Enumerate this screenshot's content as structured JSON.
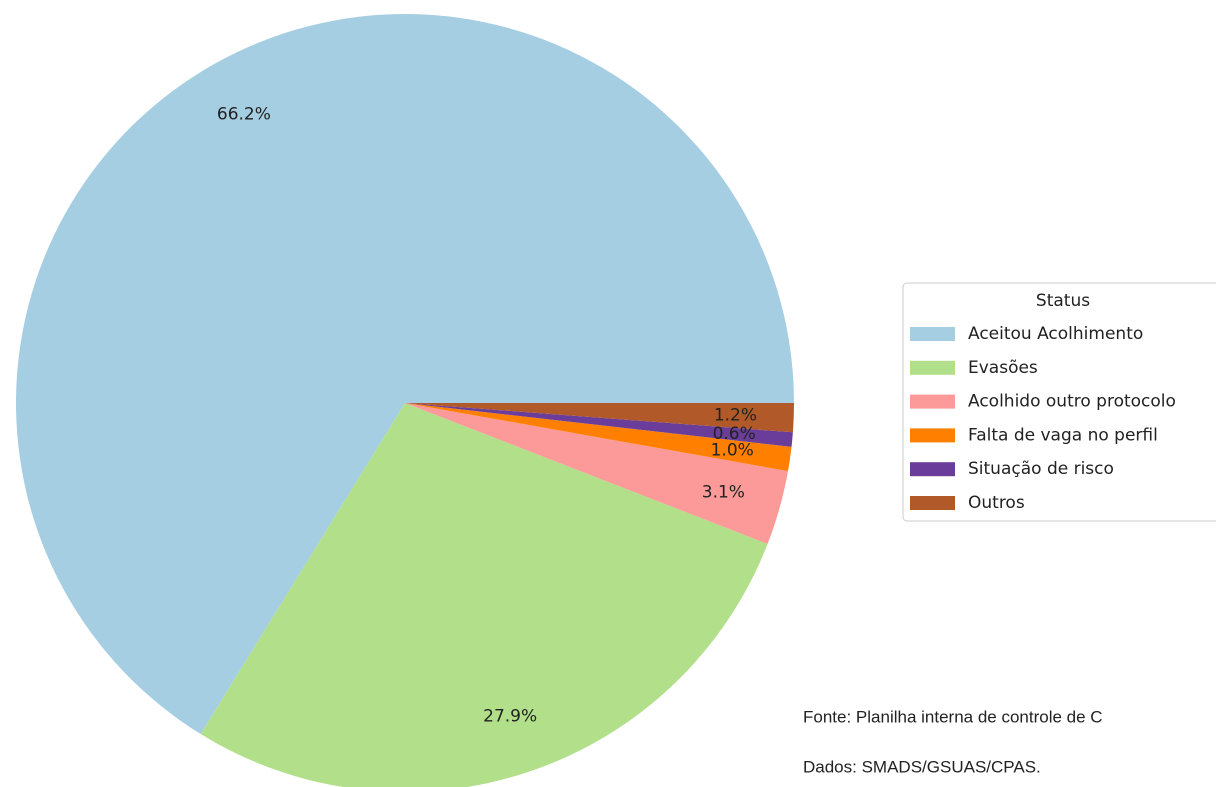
{
  "chart_data": {
    "type": "pie",
    "categories": [
      "Aceitou Acolhimento",
      "Evasões",
      "Acolhido outro protocolo",
      "Falta de vaga no perfil",
      "Situação de risco",
      "Outros"
    ],
    "values": [
      66.2,
      27.9,
      3.1,
      1.0,
      0.6,
      1.2
    ],
    "value_labels": [
      "66.2%",
      "27.9%",
      "3.1%",
      "1.0%",
      "0.6%",
      "1.2%"
    ],
    "colors": [
      "#a6cee3",
      "#b2df8a",
      "#fb9a99",
      "#ff7f00",
      "#6a3d9a",
      "#b15928"
    ],
    "legend_title": "Status",
    "legend": "right",
    "notes": [
      "Fonte: Planilha interna de controle de C",
      "Dados: SMADS/GSUAS/CPAS."
    ]
  }
}
